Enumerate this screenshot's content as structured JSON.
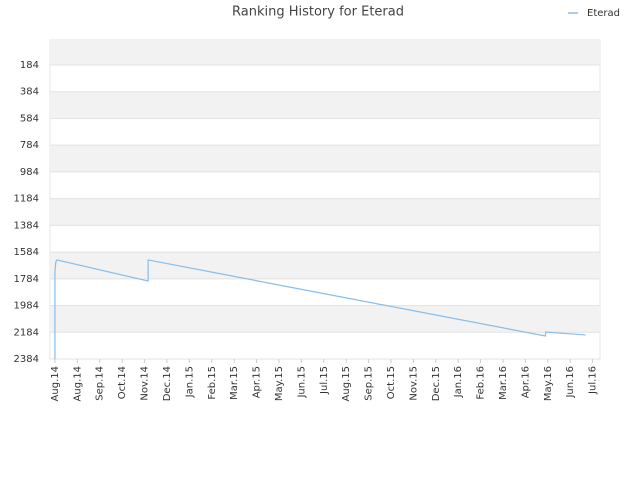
{
  "chart_data": {
    "type": "line",
    "title": "Ranking History for Eterad",
    "x": [
      0,
      0,
      0.04,
      0.09,
      4.16,
      4.16,
      21.9,
      21.9,
      23.69
    ],
    "series": [
      {
        "name": "Eterad",
        "color": "#88bde8",
        "values": [
          2384,
          1733,
          1658,
          1643,
          1800,
          1643,
          2212,
          2182,
          2204
        ]
      }
    ],
    "xlim": [
      -0.22,
      24.33
    ],
    "xticks": [
      {
        "value": 0,
        "label": "Aug.14"
      },
      {
        "value": 1,
        "label": "Aug.14"
      },
      {
        "value": 2,
        "label": "Sep.14"
      },
      {
        "value": 3,
        "label": "Oct.14"
      },
      {
        "value": 4,
        "label": "Nov.14"
      },
      {
        "value": 5,
        "label": "Dec.14"
      },
      {
        "value": 6,
        "label": "Jan.15"
      },
      {
        "value": 7,
        "label": "Feb.15"
      },
      {
        "value": 8,
        "label": "Mar.15"
      },
      {
        "value": 9,
        "label": "Apr.15"
      },
      {
        "value": 10,
        "label": "May.15"
      },
      {
        "value": 11,
        "label": "Jun.15"
      },
      {
        "value": 12,
        "label": "Jul.15"
      },
      {
        "value": 13,
        "label": "Aug.15"
      },
      {
        "value": 14,
        "label": "Sep.15"
      },
      {
        "value": 15,
        "label": "Oct.15"
      },
      {
        "value": 16,
        "label": "Nov.15"
      },
      {
        "value": 17,
        "label": "Dec.15"
      },
      {
        "value": 18,
        "label": "Jan.16"
      },
      {
        "value": 19,
        "label": "Feb.16"
      },
      {
        "value": 20,
        "label": "Mar.16"
      },
      {
        "value": 21,
        "label": "Apr.16"
      },
      {
        "value": 22,
        "label": "May.16"
      },
      {
        "value": 23,
        "label": "Jun.16"
      },
      {
        "value": 24,
        "label": "Jul.16"
      }
    ],
    "ylim": [
      2384,
      -3
    ],
    "yticks": [
      184,
      384,
      584,
      784,
      984,
      1184,
      1384,
      1584,
      1784,
      1984,
      2184,
      2384
    ],
    "grid": true,
    "legend": "top-right"
  }
}
